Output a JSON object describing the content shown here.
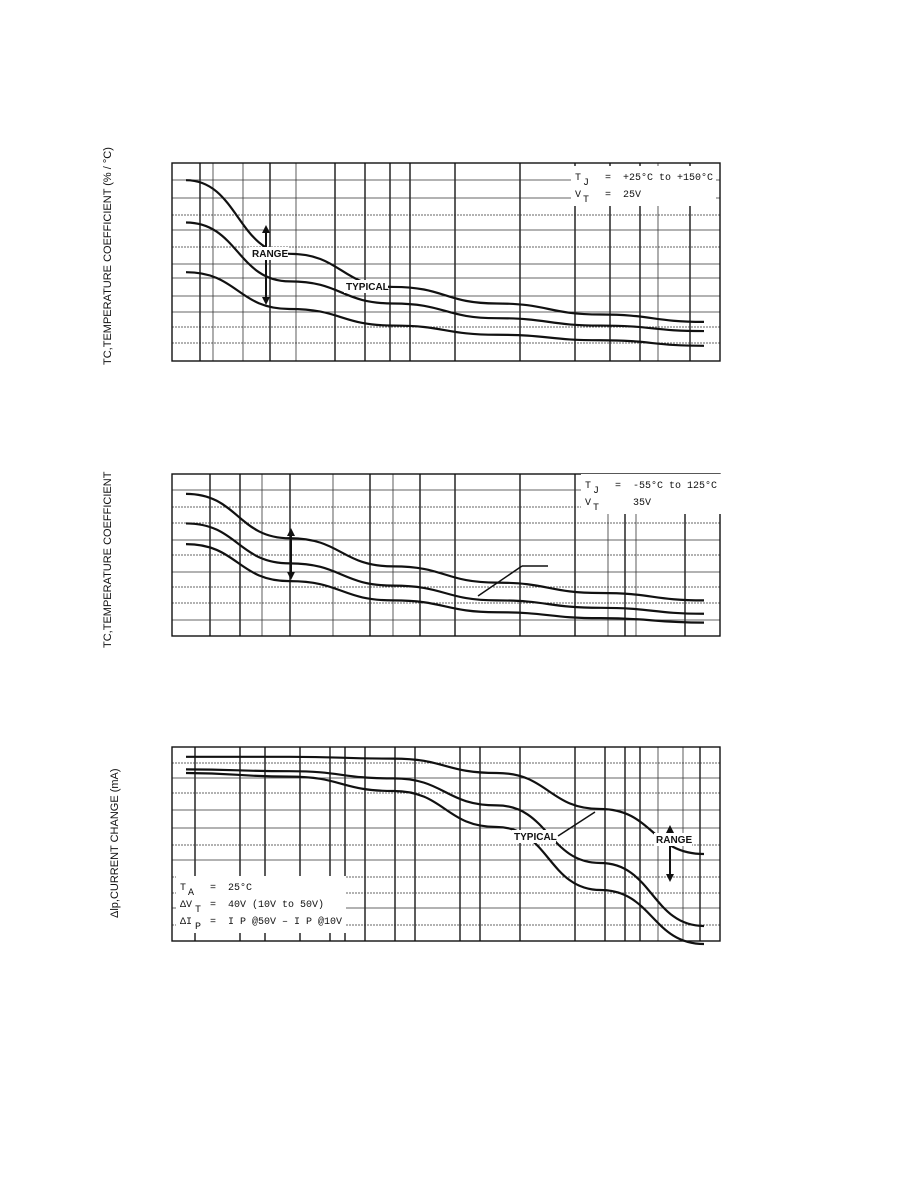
{
  "chart_data": [
    {
      "type": "line",
      "title": "",
      "ylabel": "TC,TEMPERATURE COEFFICIENT (% / °C)",
      "xlabel": "",
      "conditions": [
        {
          "sym": "T",
          "sub": "J",
          "eq": "=",
          "val": "+25°C  to  +150°C"
        },
        {
          "sym": "V",
          "sub": "T",
          "eq": "=",
          "val": "25V"
        }
      ],
      "annotations": {
        "range": "RANGE",
        "typical": "TYPICAL"
      },
      "grid": true,
      "series": [
        {
          "values": [
            0.95,
            0.55,
            0.37,
            0.28,
            0.22,
            0.18
          ]
        },
        {
          "values": [
            0.72,
            0.4,
            0.28,
            0.2,
            0.16,
            0.13
          ]
        },
        {
          "values": [
            0.45,
            0.25,
            0.16,
            0.11,
            0.08,
            0.05
          ]
        }
      ]
    },
    {
      "type": "line",
      "title": "",
      "ylabel": "TC,TEMPERATURE COEFFICIENT",
      "xlabel": "",
      "conditions": [
        {
          "sym": "T",
          "sub": "J",
          "eq": "=",
          "val": "-55°C  to  125°C"
        },
        {
          "sym": "V",
          "sub": "T",
          "eq": "",
          "val": "35V"
        }
      ],
      "annotations": {
        "range": "",
        "typical": ""
      },
      "grid": true,
      "series": [
        {
          "values": [
            0.92,
            0.62,
            0.43,
            0.32,
            0.25,
            0.2
          ]
        },
        {
          "values": [
            0.72,
            0.45,
            0.3,
            0.2,
            0.15,
            0.11
          ]
        },
        {
          "values": [
            0.58,
            0.33,
            0.2,
            0.12,
            0.08,
            0.05
          ]
        }
      ]
    },
    {
      "type": "line",
      "title": "",
      "ylabel": "Δlp,CURRENT CHANGE (mA)",
      "xlabel": "",
      "conditions": [
        {
          "sym": "T",
          "sub": "A",
          "eq": "=",
          "val": "25°C"
        },
        {
          "sym": "ΔV",
          "sub": "T",
          "eq": "=",
          "val": "40V  (10V  to  50V)"
        },
        {
          "sym": "ΔI",
          "sub": "P",
          "eq": "=",
          "val": "I P  @50V  –  I P  @10V"
        }
      ],
      "annotations": {
        "range": "RANGE",
        "typical": "TYPICAL"
      },
      "grid": true,
      "series": [
        {
          "values": [
            0.99,
            0.99,
            0.98,
            0.9,
            0.7,
            0.45
          ]
        },
        {
          "values": [
            0.92,
            0.91,
            0.87,
            0.72,
            0.4,
            0.05
          ]
        },
        {
          "values": [
            0.9,
            0.88,
            0.8,
            0.6,
            0.25,
            -0.05
          ]
        }
      ]
    }
  ]
}
